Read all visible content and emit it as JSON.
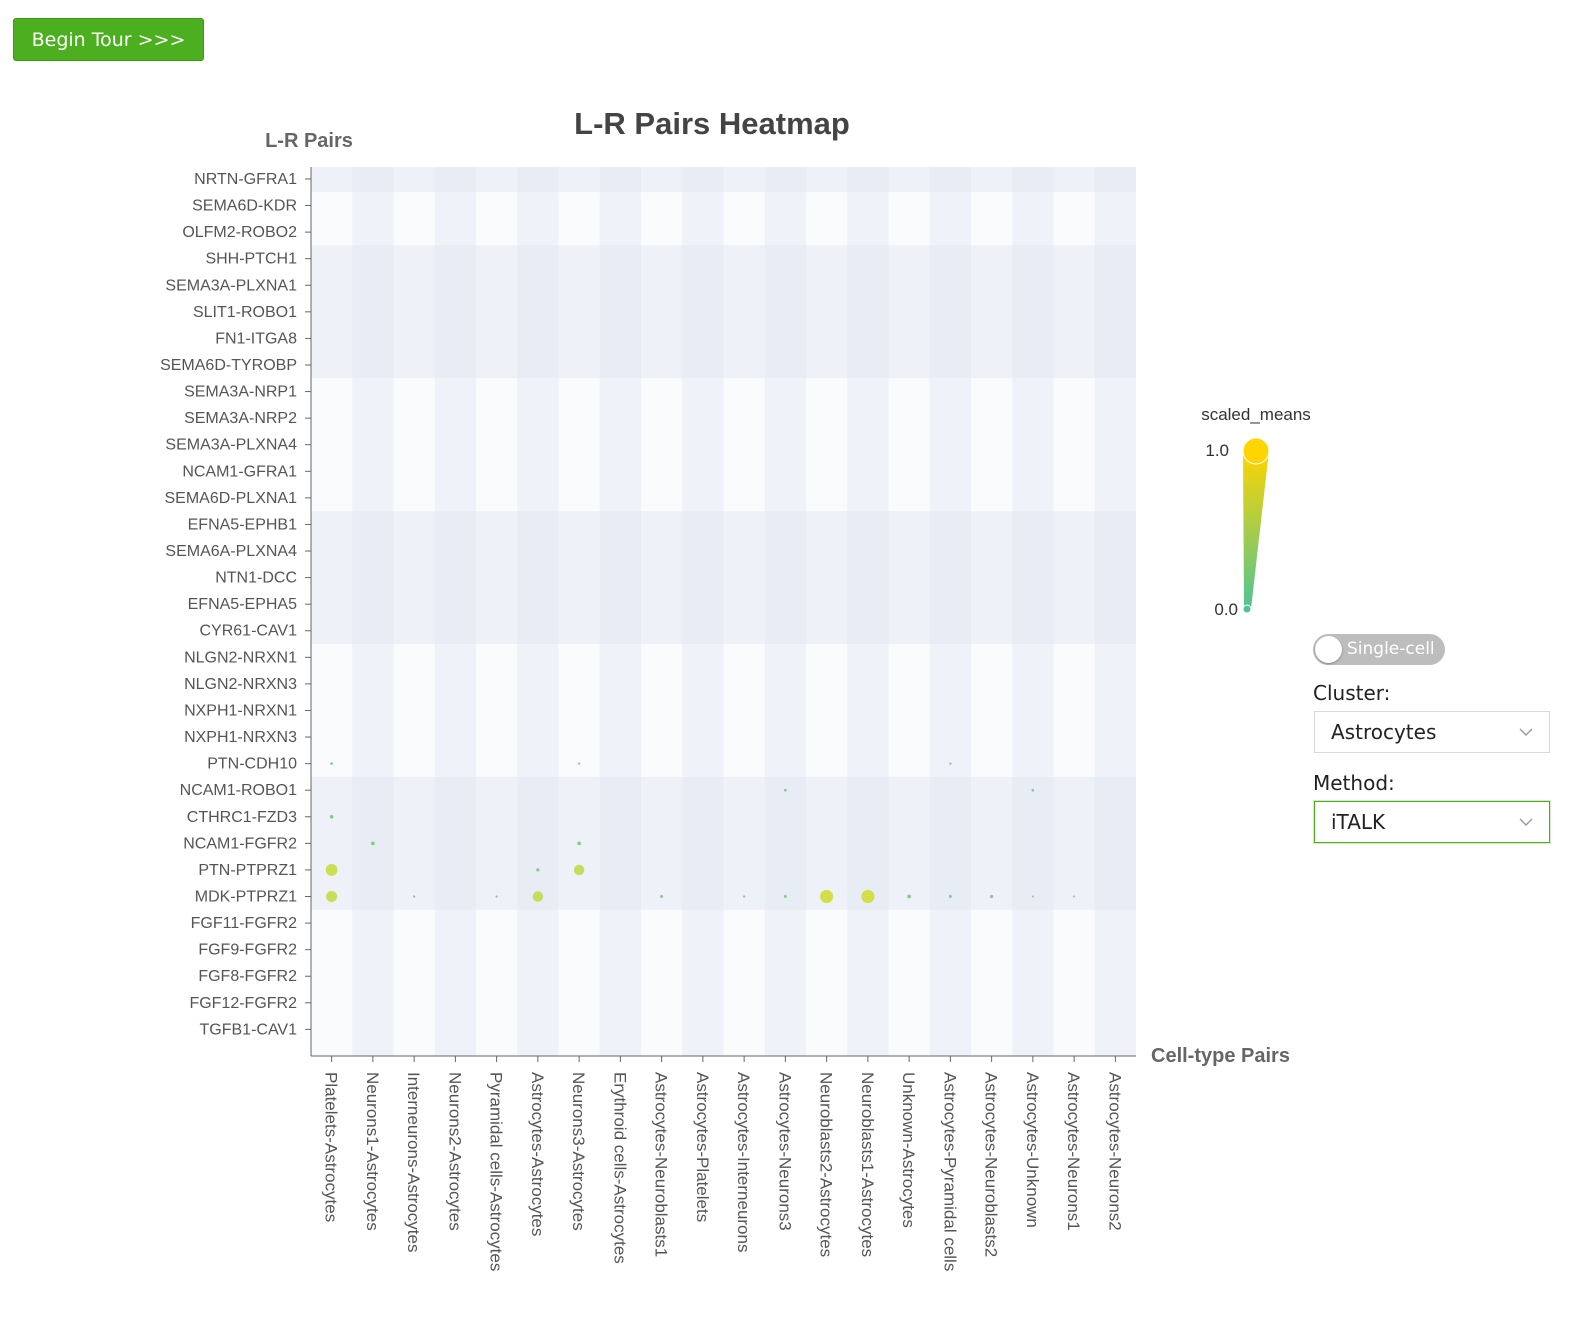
{
  "tour_button": {
    "label": "Begin Tour >>>"
  },
  "colors": {
    "accent": "#4caf1f",
    "band": "#eef1f8",
    "scale_low": "#4fc493",
    "scale_high": "#ffd500"
  },
  "controls": {
    "toggle_label": "Single-cell",
    "toggle_on": false,
    "cluster_label": "Cluster:",
    "cluster_value": "Astrocytes",
    "method_label": "Method:",
    "method_value": "iTALK"
  },
  "chart_data": {
    "type": "heatmap",
    "title": "L-R Pairs Heatmap",
    "ylabel": "L-R Pairs",
    "xlabel": "Cell-type Pairs",
    "legend": {
      "title": "scaled_means",
      "max_label": "1.0",
      "min_label": "0.0",
      "range": [
        0,
        1
      ]
    },
    "rows": [
      "NRTN-GFRA1",
      "SEMA6D-KDR",
      "OLFM2-ROBO2",
      "SHH-PTCH1",
      "SEMA3A-PLXNA1",
      "SLIT1-ROBO1",
      "FN1-ITGA8",
      "SEMA6D-TYROBP",
      "SEMA3A-NRP1",
      "SEMA3A-NRP2",
      "SEMA3A-PLXNA4",
      "NCAM1-GFRA1",
      "SEMA6D-PLXNA1",
      "EFNA5-EPHB1",
      "SEMA6A-PLXNA4",
      "NTN1-DCC",
      "EFNA5-EPHA5",
      "CYR61-CAV1",
      "NLGN2-NRXN1",
      "NLGN2-NRXN3",
      "NXPH1-NRXN1",
      "NXPH1-NRXN3",
      "PTN-CDH10",
      "NCAM1-ROBO1",
      "CTHRC1-FZD3",
      "NCAM1-FGFR2",
      "PTN-PTPRZ1",
      "MDK-PTPRZ1",
      "FGF11-FGFR2",
      "FGF9-FGFR2",
      "FGF8-FGFR2",
      "FGF12-FGFR2",
      "TGFB1-CAV1"
    ],
    "columns": [
      "Platelets-Astrocytes",
      "Neurons1-Astrocytes",
      "Interneurons-Astrocytes",
      "Neurons2-Astrocytes",
      "Pyramidal cells-Astrocytes",
      "Astrocytes-Astrocytes",
      "Neurons3-Astrocytes",
      "Erythroid cells-Astrocytes",
      "Astrocytes-Neuroblasts1",
      "Astrocytes-Platelets",
      "Astrocytes-Interneurons",
      "Astrocytes-Neurons3",
      "Neuroblasts2-Astrocytes",
      "Neuroblasts1-Astrocytes",
      "Unknown-Astrocytes",
      "Astrocytes-Pyramidal cells",
      "Astrocytes-Neuroblasts2",
      "Astrocytes-Unknown",
      "Astrocytes-Neurons1",
      "Astrocytes-Neurons2"
    ],
    "points": [
      {
        "row": "PTN-CDH10",
        "col": "Platelets-Astrocytes",
        "value": 0.08
      },
      {
        "row": "CTHRC1-FZD3",
        "col": "Platelets-Astrocytes",
        "value": 0.15
      },
      {
        "row": "PTN-PTPRZ1",
        "col": "Platelets-Astrocytes",
        "value": 0.75
      },
      {
        "row": "MDK-PTPRZ1",
        "col": "Platelets-Astrocytes",
        "value": 0.7
      },
      {
        "row": "NCAM1-FGFR2",
        "col": "Neurons1-Astrocytes",
        "value": 0.15
      },
      {
        "row": "MDK-PTPRZ1",
        "col": "Interneurons-Astrocytes",
        "value": 0.05
      },
      {
        "row": "MDK-PTPRZ1",
        "col": "Pyramidal cells-Astrocytes",
        "value": 0.05
      },
      {
        "row": "PTN-PTPRZ1",
        "col": "Astrocytes-Astrocytes",
        "value": 0.12
      },
      {
        "row": "MDK-PTPRZ1",
        "col": "Astrocytes-Astrocytes",
        "value": 0.65
      },
      {
        "row": "PTN-CDH10",
        "col": "Neurons3-Astrocytes",
        "value": 0.05
      },
      {
        "row": "NCAM1-FGFR2",
        "col": "Neurons3-Astrocytes",
        "value": 0.15
      },
      {
        "row": "PTN-PTPRZ1",
        "col": "Neurons3-Astrocytes",
        "value": 0.65
      },
      {
        "row": "MDK-PTPRZ1",
        "col": "Astrocytes-Neuroblasts1",
        "value": 0.1
      },
      {
        "row": "MDK-PTPRZ1",
        "col": "Astrocytes-Interneurons",
        "value": 0.05
      },
      {
        "row": "NCAM1-ROBO1",
        "col": "Astrocytes-Neurons3",
        "value": 0.08
      },
      {
        "row": "MDK-PTPRZ1",
        "col": "Astrocytes-Neurons3",
        "value": 0.1
      },
      {
        "row": "MDK-PTPRZ1",
        "col": "Neuroblasts2-Astrocytes",
        "value": 0.85
      },
      {
        "row": "MDK-PTPRZ1",
        "col": "Neuroblasts1-Astrocytes",
        "value": 0.85
      },
      {
        "row": "MDK-PTPRZ1",
        "col": "Unknown-Astrocytes",
        "value": 0.15
      },
      {
        "row": "PTN-CDH10",
        "col": "Astrocytes-Pyramidal cells",
        "value": 0.05
      },
      {
        "row": "MDK-PTPRZ1",
        "col": "Astrocytes-Pyramidal cells",
        "value": 0.1
      },
      {
        "row": "MDK-PTPRZ1",
        "col": "Astrocytes-Neuroblasts2",
        "value": 0.12
      },
      {
        "row": "NCAM1-ROBO1",
        "col": "Astrocytes-Unknown",
        "value": 0.08
      },
      {
        "row": "MDK-PTPRZ1",
        "col": "Astrocytes-Neurons1",
        "value": 0.03
      },
      {
        "row": "MDK-PTPRZ1",
        "col": "Astrocytes-Unknown",
        "value": 0.03
      }
    ],
    "grid": false,
    "legend_position": "right"
  }
}
